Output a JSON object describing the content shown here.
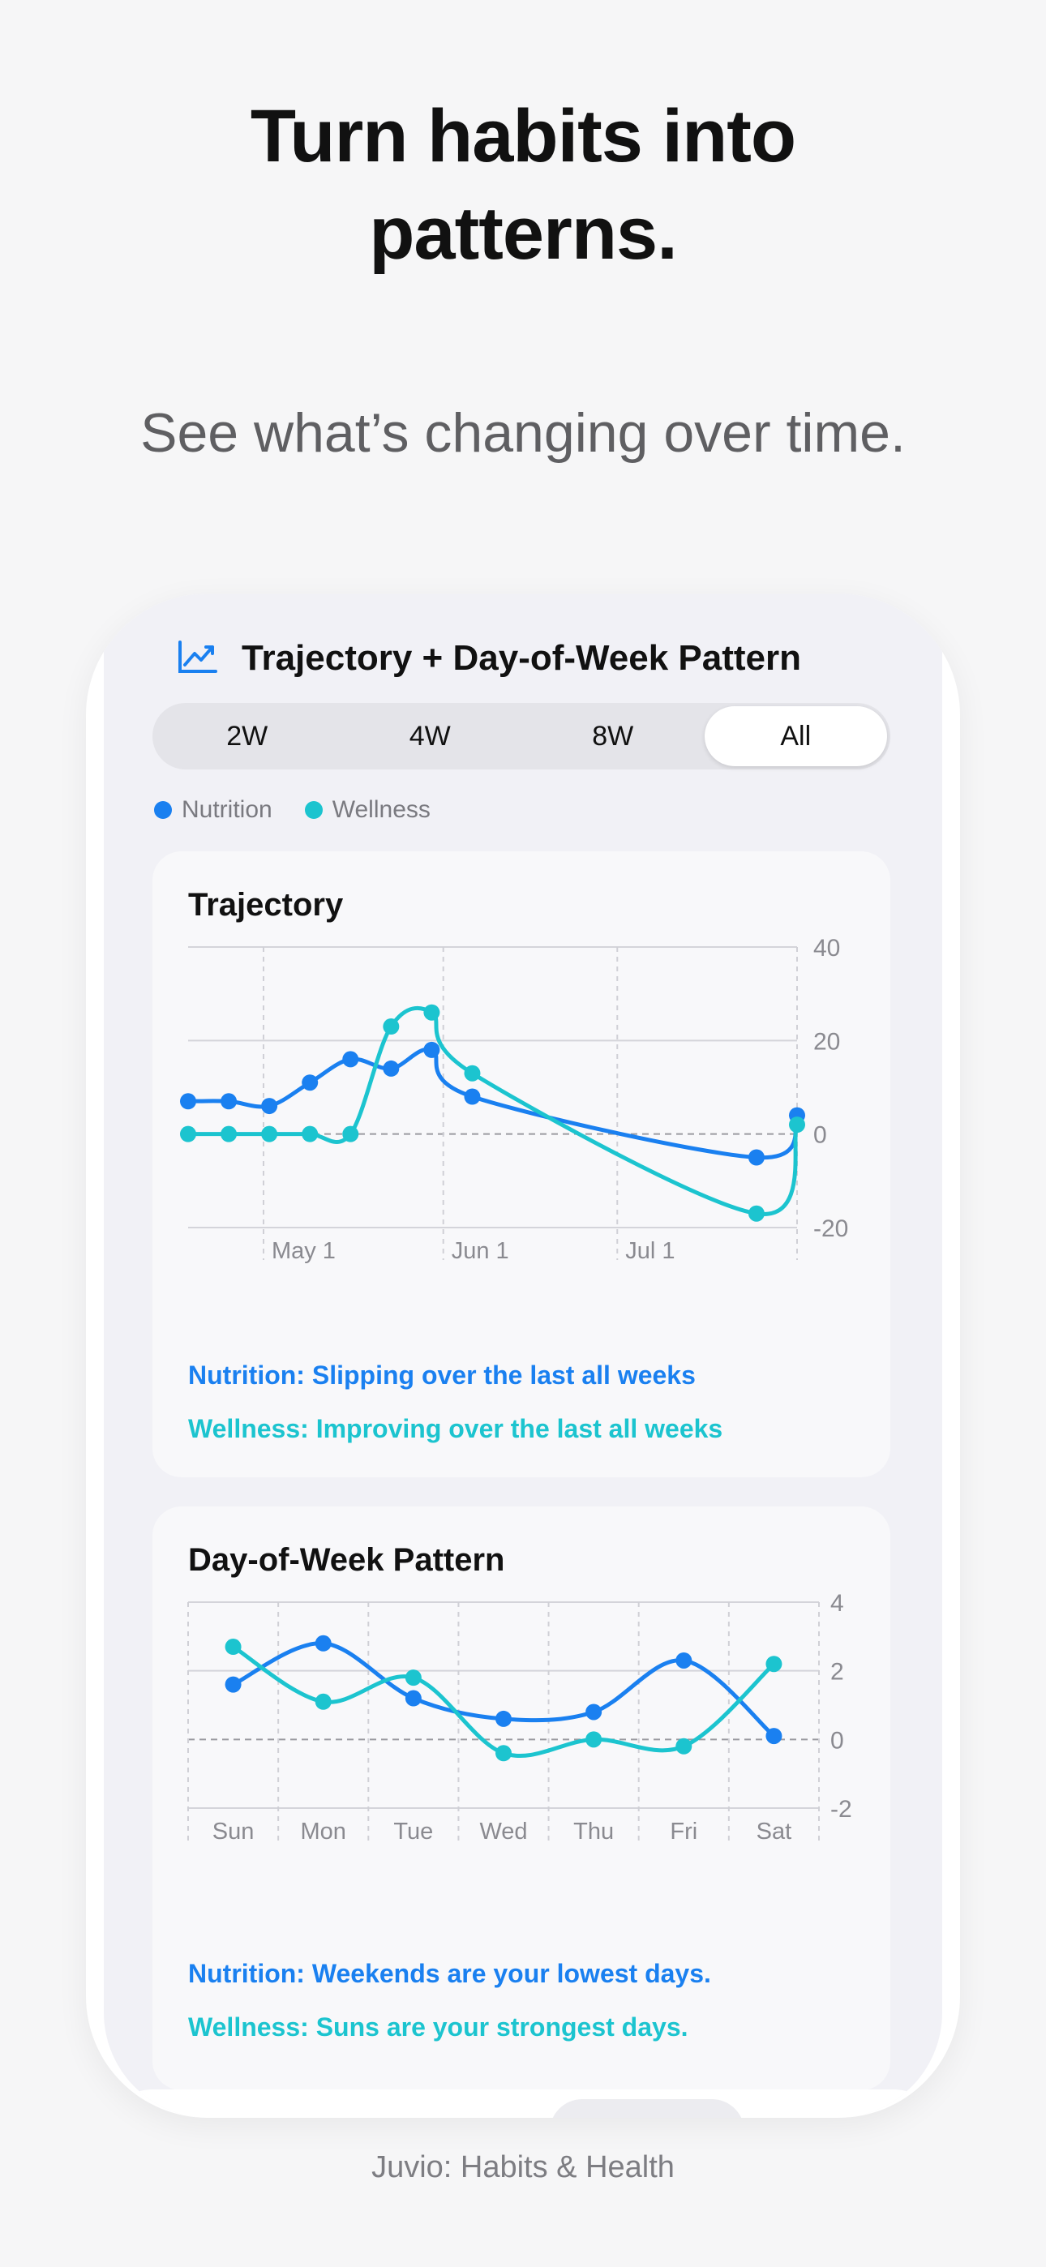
{
  "headline_line1": "Turn habits into",
  "headline_line2": "patterns.",
  "subhead": "See what’s changing over time.",
  "screen": {
    "title": "Trajectory + Day-of-Week Pattern",
    "title_icon": "chart-trend-icon",
    "segments": [
      "2W",
      "4W",
      "8W",
      "All"
    ],
    "active_segment": "All",
    "legend": [
      {
        "label": "Nutrition",
        "color": "#1a80f0"
      },
      {
        "label": "Wellness",
        "color": "#1cc4cf"
      }
    ]
  },
  "colors": {
    "nutrition": "#1a80f0",
    "wellness": "#1cc4cf"
  },
  "chart_data": [
    {
      "type": "line",
      "title": "Trajectory",
      "x_tick_labels": [
        "May 1",
        "Jun 1",
        "Jul 1"
      ],
      "y_ticks": [
        40,
        20,
        0,
        -20
      ],
      "ylim": [
        -20,
        40
      ],
      "grid": true,
      "legend_position": "top-left",
      "series": [
        {
          "name": "Nutrition",
          "color": "#1a80f0",
          "points": [
            {
              "x": "2024-04-18",
              "y": 7
            },
            {
              "x": "2024-04-25",
              "y": 7
            },
            {
              "x": "2024-05-02",
              "y": 6
            },
            {
              "x": "2024-05-09",
              "y": 11
            },
            {
              "x": "2024-05-16",
              "y": 16
            },
            {
              "x": "2024-05-23",
              "y": 14
            },
            {
              "x": "2024-05-30",
              "y": 18
            },
            {
              "x": "2024-06-06",
              "y": 8
            },
            {
              "x": "2024-07-25",
              "y": -5
            },
            {
              "x": "2024-08-01",
              "y": 4
            }
          ]
        },
        {
          "name": "Wellness",
          "color": "#1cc4cf",
          "points": [
            {
              "x": "2024-04-18",
              "y": 0
            },
            {
              "x": "2024-04-25",
              "y": 0
            },
            {
              "x": "2024-05-02",
              "y": 0
            },
            {
              "x": "2024-05-09",
              "y": 0
            },
            {
              "x": "2024-05-16",
              "y": 0
            },
            {
              "x": "2024-05-23",
              "y": 23
            },
            {
              "x": "2024-05-30",
              "y": 26
            },
            {
              "x": "2024-06-06",
              "y": 13
            },
            {
              "x": "2024-07-25",
              "y": -17
            },
            {
              "x": "2024-08-01",
              "y": 2
            }
          ]
        }
      ],
      "insights": [
        {
          "text": "Nutrition: Slipping over the last all weeks",
          "color": "#1a80f0"
        },
        {
          "text": "Wellness: Improving over the last all weeks",
          "color": "#1cc4cf"
        }
      ]
    },
    {
      "type": "line",
      "title": "Day-of-Week Pattern",
      "categories": [
        "Sun",
        "Mon",
        "Tue",
        "Wed",
        "Thu",
        "Fri",
        "Sat"
      ],
      "y_ticks": [
        4,
        2,
        0,
        -2
      ],
      "ylim": [
        -2,
        4
      ],
      "grid": true,
      "series": [
        {
          "name": "Nutrition",
          "color": "#1a80f0",
          "values": [
            1.6,
            2.8,
            1.2,
            0.6,
            0.8,
            2.3,
            0.1
          ]
        },
        {
          "name": "Wellness",
          "color": "#1cc4cf",
          "values": [
            2.7,
            1.1,
            1.8,
            -0.4,
            0.0,
            -0.2,
            2.2
          ]
        }
      ],
      "insights": [
        {
          "text": "Nutrition: Weekends are your lowest days.",
          "color": "#1a80f0"
        },
        {
          "text": "Wellness: Suns are your strongest days.",
          "color": "#1cc4cf"
        }
      ]
    }
  ],
  "caption": "Juvio: Habits & Health"
}
